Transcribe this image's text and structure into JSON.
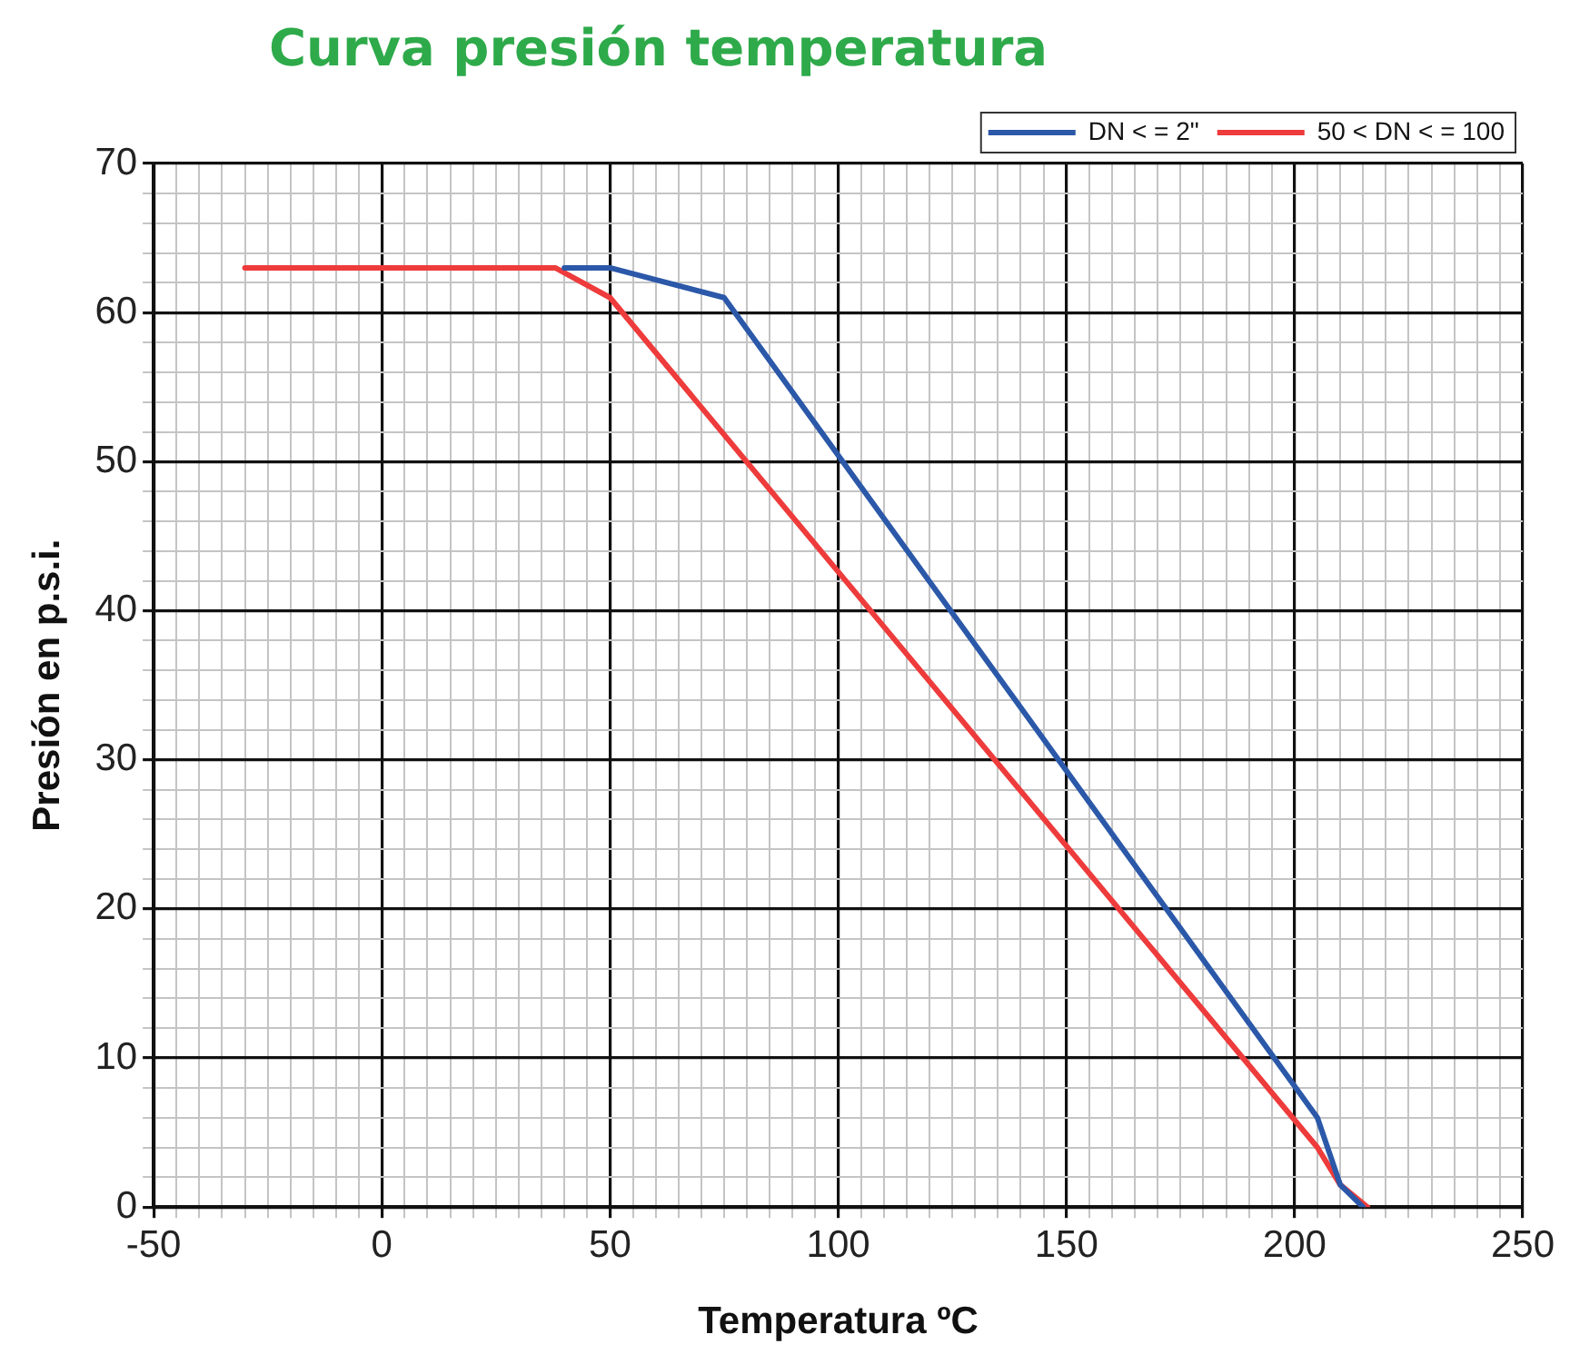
{
  "chart_data": {
    "type": "line",
    "title": "Curva presión temperatura",
    "xlabel": "Temperatura ºC",
    "ylabel": "Presión en p.s.i.",
    "xlim": [
      -50,
      250
    ],
    "xticks": [
      -50,
      {
        "value": -45,
        "label": null
      },
      {
        "value": -40,
        "label": null
      },
      {
        "value": -35,
        "label": null
      },
      {
        "value": -30,
        "label": null
      },
      {
        "value": -25,
        "label": null
      },
      {
        "value": -20,
        "label": null
      },
      {
        "value": -15,
        "label": null
      },
      {
        "value": -10,
        "label": null
      },
      {
        "value": -5,
        "label": null
      },
      0,
      {
        "value": 5,
        "label": null
      },
      {
        "value": 10,
        "label": null
      },
      {
        "value": 15,
        "label": null
      },
      {
        "value": 20,
        "label": null
      },
      {
        "value": 25,
        "label": null
      },
      {
        "value": 30,
        "label": null
      },
      {
        "value": 35,
        "label": null
      },
      {
        "value": 40,
        "label": null
      },
      {
        "value": 45,
        "label": null
      },
      50,
      {
        "value": 55,
        "label": null
      },
      {
        "value": 60,
        "label": null
      },
      {
        "value": 65,
        "label": null
      },
      {
        "value": 70,
        "label": null
      },
      {
        "value": 75,
        "label": null
      },
      {
        "value": 80,
        "label": null
      },
      {
        "value": 85,
        "label": null
      },
      {
        "value": 90,
        "label": null
      },
      {
        "value": 95,
        "label": null
      },
      100,
      {
        "value": 105,
        "label": null
      },
      {
        "value": 110,
        "label": null
      },
      {
        "value": 115,
        "label": null
      },
      {
        "value": 120,
        "label": null
      },
      {
        "value": 125,
        "label": null
      },
      {
        "value": 130,
        "label": null
      },
      {
        "value": 135,
        "label": null
      },
      {
        "value": 140,
        "label": null
      },
      {
        "value": 145,
        "label": null
      },
      150,
      {
        "value": 155,
        "label": null
      },
      {
        "value": 160,
        "label": null
      },
      {
        "value": 165,
        "label": null
      },
      {
        "value": 170,
        "label": null
      },
      {
        "value": 175,
        "label": null
      },
      {
        "value": 180,
        "label": null
      },
      {
        "value": 185,
        "label": null
      },
      {
        "value": 190,
        "label": null
      },
      {
        "value": 195,
        "label": null
      },
      200,
      {
        "value": 205,
        "label": null
      },
      {
        "value": 210,
        "label": null
      },
      {
        "value": 215,
        "label": null
      },
      {
        "value": 220,
        "label": null
      },
      {
        "value": 225,
        "label": null
      },
      {
        "value": 230,
        "label": null
      },
      {
        "value": 235,
        "label": null
      },
      {
        "value": 240,
        "label": null
      },
      {
        "value": 245,
        "label": null
      },
      250
    ],
    "ylim": [
      0,
      70
    ],
    "yticks": [
      0,
      {
        "value": 2,
        "label": null
      },
      {
        "value": 4,
        "label": null
      },
      {
        "value": 6,
        "label": null
      },
      {
        "value": 8,
        "label": null
      },
      10,
      {
        "value": 12,
        "label": null
      },
      {
        "value": 14,
        "label": null
      },
      {
        "value": 16,
        "label": null
      },
      {
        "value": 18,
        "label": null
      },
      20,
      {
        "value": 22,
        "label": null
      },
      {
        "value": 24,
        "label": null
      },
      {
        "value": 26,
        "label": null
      },
      {
        "value": 28,
        "label": null
      },
      30,
      {
        "value": 32,
        "label": null
      },
      {
        "value": 34,
        "label": null
      },
      {
        "value": 36,
        "label": null
      },
      {
        "value": 38,
        "label": null
      },
      40,
      {
        "value": 42,
        "label": null
      },
      {
        "value": 44,
        "label": null
      },
      {
        "value": 46,
        "label": null
      },
      {
        "value": 48,
        "label": null
      },
      50,
      {
        "value": 52,
        "label": null
      },
      {
        "value": 54,
        "label": null
      },
      {
        "value": 56,
        "label": null
      },
      {
        "value": 58,
        "label": null
      },
      60,
      {
        "value": 62,
        "label": null
      },
      {
        "value": 64,
        "label": null
      },
      {
        "value": 66,
        "label": null
      },
      {
        "value": 68,
        "label": null
      },
      70
    ],
    "grid": true,
    "legend": "top right",
    "marker": "none",
    "line_style": "solid",
    "series": [
      {
        "name": "DN < = 2\"",
        "color": "#2b58a8",
        "x": [
          40,
          50,
          75,
          205,
          210,
          215
        ],
        "values": [
          63,
          63,
          61,
          6,
          1.5,
          0
        ]
      },
      {
        "name": "50 < DN < = 100",
        "color": "#ee3b3b",
        "x": [
          -30,
          38,
          50,
          205,
          210,
          216
        ],
        "values": [
          63,
          63,
          61,
          4,
          1.5,
          0
        ]
      }
    ]
  }
}
